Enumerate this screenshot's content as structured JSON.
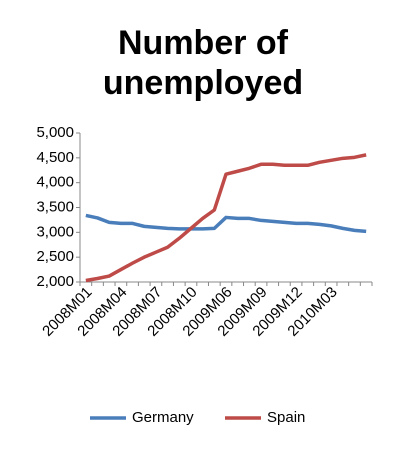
{
  "chart_data": {
    "type": "line",
    "title": "Number of unemployed",
    "categories": [
      "2008M01",
      null,
      null,
      "2008M04",
      null,
      null,
      "2008M07",
      null,
      null,
      "2008M10",
      null,
      null,
      "2009M06",
      null,
      null,
      "2009M09",
      null,
      null,
      "2009M12",
      null,
      null,
      "2010M03",
      null,
      null,
      null
    ],
    "series": [
      {
        "name": "Germany",
        "color": "#4a7ebb",
        "values": [
          3340,
          3290,
          3200,
          3180,
          3180,
          3120,
          3100,
          3080,
          3070,
          3070,
          3070,
          3080,
          3300,
          3280,
          3280,
          3240,
          3220,
          3200,
          3180,
          3180,
          3160,
          3130,
          3080,
          3040,
          3020
        ]
      },
      {
        "name": "Spain",
        "color": "#be4b48",
        "values": [
          2030,
          2070,
          2120,
          2250,
          2380,
          2500,
          2600,
          2700,
          2880,
          3080,
          3280,
          3450,
          4170,
          4230,
          4290,
          4370,
          4370,
          4350,
          4350,
          4350,
          4410,
          4450,
          4490,
          4510,
          4560
        ]
      }
    ],
    "ylim": [
      2000,
      5000
    ],
    "yticks": [
      {
        "value": 2000,
        "label": "2,000"
      },
      {
        "value": 2500,
        "label": "2,500"
      },
      {
        "value": 3000,
        "label": "3,000"
      },
      {
        "value": 3500,
        "label": "3,500"
      },
      {
        "value": 4000,
        "label": "4,000"
      },
      {
        "value": 4500,
        "label": "4,500"
      },
      {
        "value": 5000,
        "label": "5,000"
      }
    ],
    "grid": false,
    "legend": "bottom"
  }
}
